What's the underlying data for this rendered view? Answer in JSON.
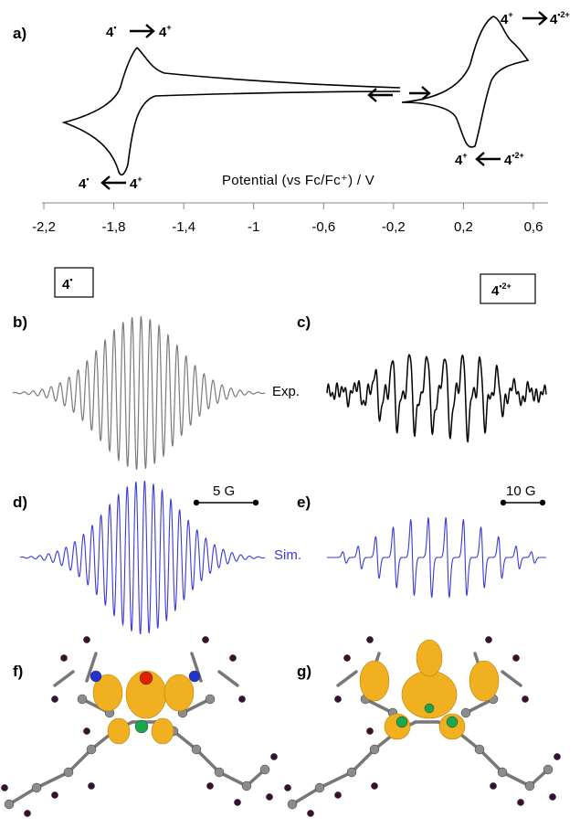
{
  "panels": {
    "a": "a)",
    "b": "b)",
    "c": "c)",
    "d": "d)",
    "e": "e)",
    "f": "f)",
    "g": "g)"
  },
  "cv": {
    "axis_label": "Potential (vs Fc/Fc⁺) / V",
    "ticks": [
      "-2,2",
      "-1,8",
      "-1,4",
      "-1",
      "-0,6",
      "-0,2",
      "0,2",
      "0,6"
    ],
    "tick_values": [
      -2.2,
      -1.8,
      -1.4,
      -1.0,
      -0.6,
      -0.2,
      0.2,
      0.6
    ],
    "species": {
      "base": "4",
      "radical_sup": "•",
      "cation_sup": "+",
      "radical_dication_sup": "•2+"
    }
  },
  "epr": {
    "label_left": "4",
    "label_left_sup": "•",
    "label_right": "4",
    "label_right_sup": "•2+",
    "exp_label": "Exp.",
    "sim_label": "Sim.",
    "scale_left": "5 G",
    "scale_right": "10 G",
    "colors": {
      "experimental_left": "#7a7a7a",
      "experimental_right": "#000000",
      "simulated": "#3a3ad8"
    }
  },
  "colors": {
    "isosurface": "#f0b020",
    "carbon": "#8c8c8c",
    "hydrogen": "#3a1030",
    "nitrogen": "#2233cc",
    "oxygen": "#dd2200",
    "boron": "#1aa84a"
  }
}
